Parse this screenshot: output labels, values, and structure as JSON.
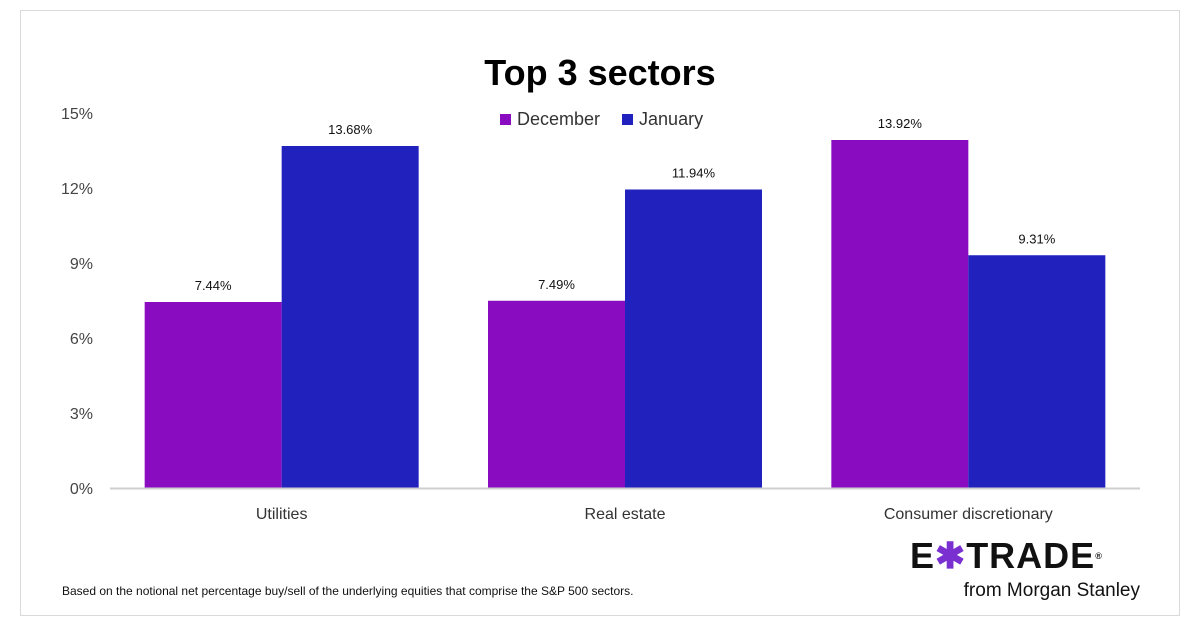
{
  "chart_data": {
    "type": "bar",
    "title": "Top 3 sectors",
    "categories": [
      "Utilities",
      "Real estate",
      "Consumer discretionary"
    ],
    "series": [
      {
        "name": "December",
        "values": [
          7.44,
          7.49,
          13.92
        ],
        "labels": [
          "7.44%",
          "7.49%",
          "13.92%"
        ],
        "color": "#8a0cc0"
      },
      {
        "name": "January",
        "values": [
          13.68,
          11.94,
          9.31
        ],
        "labels": [
          "13.68%",
          "11.94%",
          "9.31%"
        ],
        "color": "#2121be"
      }
    ],
    "ylim": [
      0,
      15
    ],
    "yticks": [
      0,
      3,
      6,
      9,
      12,
      15
    ],
    "ytick_labels": [
      "0%",
      "3%",
      "6%",
      "9%",
      "12%",
      "15%"
    ],
    "grid": false,
    "legend_placement": "top-center"
  },
  "footnote": "Based on the notional net percentage buy/sell of the underlying equities that comprise the S&P 500 sectors.",
  "logo": {
    "brand": "E*TRADE",
    "tagline": "from Morgan Stanley"
  }
}
